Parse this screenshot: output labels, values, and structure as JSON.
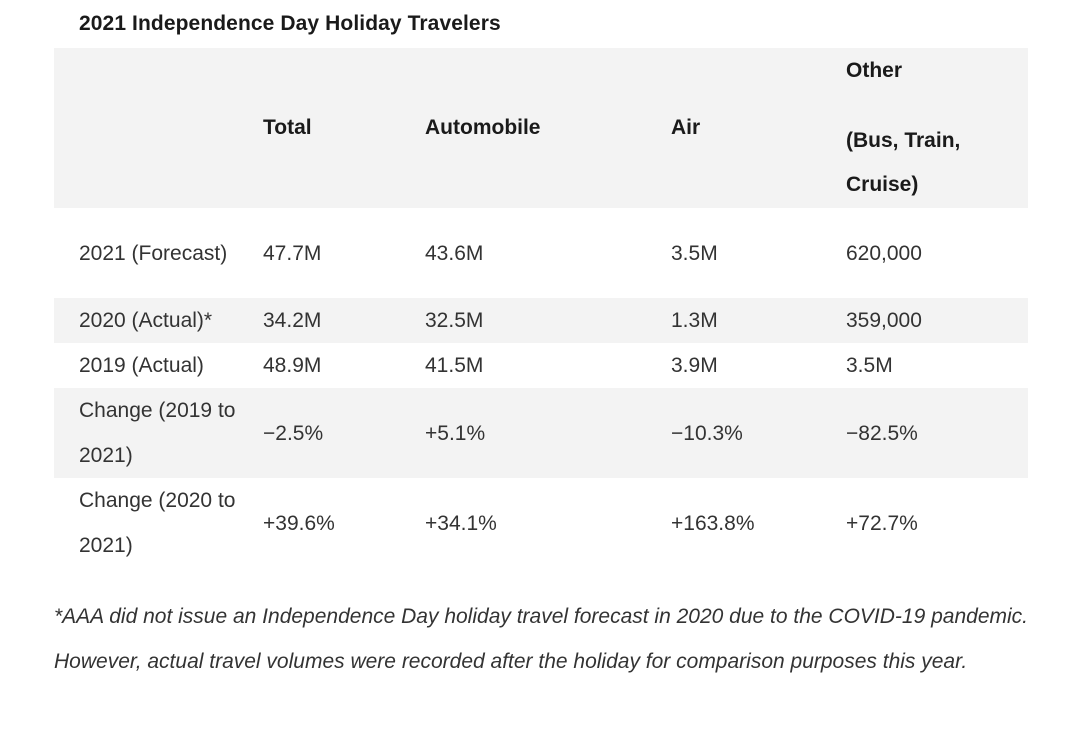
{
  "title": "2021 Independence Day Holiday Travelers",
  "table": {
    "headers": {
      "label": "",
      "total": "Total",
      "automobile": "Automobile",
      "air": "Air",
      "other_line1": "Other",
      "other_line2": "(Bus, Train, Cruise)"
    },
    "rows": [
      {
        "label": "2021 (Forecast)",
        "total": "47.7M",
        "automobile": "43.6M",
        "air": "3.5M",
        "other": "620,000"
      },
      {
        "label": "2020 (Actual)*",
        "total": "34.2M",
        "automobile": "32.5M",
        "air": "1.3M",
        "other": "359,000"
      },
      {
        "label": "2019 (Actual)",
        "total": "48.9M",
        "automobile": "41.5M",
        "air": "3.9M",
        "other": "3.5M"
      },
      {
        "label": "Change (2019 to 2021)",
        "total": "−2.5%",
        "automobile": "+5.1%",
        "air": "−10.3%",
        "other": "−82.5%"
      },
      {
        "label": "Change (2020 to 2021)",
        "total": "+39.6%",
        "automobile": "+34.1%",
        "air": "+163.8%",
        "other": "+72.7%"
      }
    ]
  },
  "footnote": "*AAA did not issue an Independence Day holiday travel forecast in 2020 due to the COVID-19 pandemic. However, actual travel volumes were recorded after the holiday for comparison purposes this year."
}
